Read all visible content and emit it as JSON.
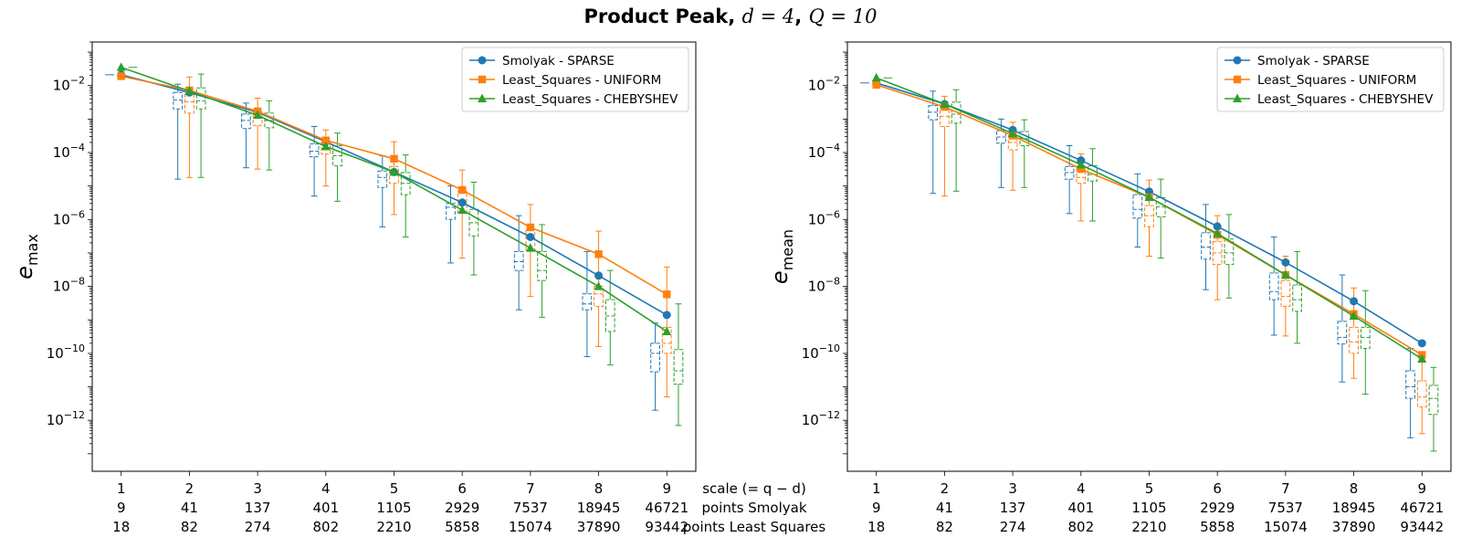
{
  "title": {
    "prefix": "Product Peak, ",
    "d_part": "d = 4",
    "separator": ", ",
    "q_part": "Q = 10"
  },
  "row_labels": [
    "scale (= q − d)",
    "points Smolyak",
    "points Least Squares"
  ],
  "colors": {
    "smolyak": "#1f77b4",
    "uniform": "#ff7f0e",
    "chebyshev": "#2ca02c"
  },
  "chart_data": [
    {
      "type": "line",
      "ylabel_base": "e",
      "ylabel_sub": "max",
      "yscale": "log",
      "ylim": [
        3e-14,
        0.2
      ],
      "yticks": [
        -12,
        -10,
        -8,
        -6,
        -4,
        -2
      ],
      "legend_position": "top-right",
      "x": [
        1,
        2,
        3,
        4,
        5,
        6,
        7,
        8,
        9
      ],
      "points_smolyak": [
        9,
        41,
        137,
        401,
        1105,
        2929,
        7537,
        18945,
        46721
      ],
      "points_least_squares": [
        18,
        82,
        274,
        802,
        2210,
        5858,
        15074,
        37890,
        93442
      ],
      "series": [
        {
          "name": "Smolyak - SPARSE",
          "marker": "circle",
          "color_key": "smolyak",
          "values": [
            0.021,
            0.0062,
            0.0016,
            0.00021,
            2.6e-05,
            3.2e-06,
            3e-07,
            2.1e-08,
            1.4e-09
          ],
          "box": [
            [
              0.021,
              0.021,
              0.021,
              0.021,
              0.021
            ],
            [
              1.6e-05,
              0.002,
              0.0037,
              0.0062,
              0.011
            ],
            [
              3.5e-05,
              0.00052,
              0.00091,
              0.0014,
              0.003
            ],
            [
              5e-06,
              7.5e-05,
              0.00011,
              0.00018,
              0.0006
            ],
            [
              6e-07,
              9e-06,
              1.8e-05,
              2.8e-05,
              8e-05
            ],
            [
              5e-08,
              1e-06,
              2.3e-06,
              3e-06,
              1e-05
            ],
            [
              2e-09,
              3e-08,
              5.5e-08,
              1.1e-07,
              1.3e-06
            ],
            [
              8e-11,
              2e-09,
              3e-09,
              6e-09,
              1.1e-07
            ],
            [
              2e-12,
              2.8e-11,
              1e-10,
              2e-10,
              8e-10
            ]
          ],
          "dashed_box_index_start": 1
        },
        {
          "name": "Least_Squares - UNIFORM",
          "marker": "square",
          "color_key": "uniform",
          "values": [
            0.019,
            0.0072,
            0.0017,
            0.00023,
            6.5e-05,
            7.6e-06,
            5.8e-07,
            9.2e-08,
            5.8e-09
          ],
          "box": [
            [
              0.019,
              0.019,
              0.019,
              0.019,
              0.019
            ],
            [
              1.8e-05,
              0.0015,
              0.0033,
              0.0065,
              0.018
            ],
            [
              3.2e-05,
              0.00065,
              0.0011,
              0.0016,
              0.0042
            ],
            [
              1e-05,
              9e-05,
              0.00013,
              0.0002,
              0.00047
            ],
            [
              1.4e-06,
              1.2e-05,
              2.5e-05,
              3.8e-05,
              0.00021
            ],
            [
              7e-08,
              1.6e-06,
              3e-06,
              7e-06,
              3e-05
            ],
            [
              5e-09,
              1.2e-07,
              2.8e-07,
              5e-07,
              2.8e-06
            ],
            [
              1.6e-10,
              2.5e-09,
              6e-09,
              1e-08,
              4.5e-07
            ],
            [
              5e-12,
              1e-10,
              2e-10,
              6e-10,
              3.8e-08
            ]
          ],
          "dashed_box_index_start": 1
        },
        {
          "name": "Least_Squares - CHEBYSHEV",
          "marker": "triangle",
          "color_key": "chebyshev",
          "values": [
            0.035,
            0.0068,
            0.0013,
            0.00015,
            2.6e-05,
            1.9e-06,
            1.4e-07,
            1e-08,
            4.5e-10
          ],
          "box": [
            [
              0.035,
              0.035,
              0.035,
              0.035,
              0.035
            ],
            [
              1.8e-05,
              0.002,
              0.0035,
              0.0085,
              0.022
            ],
            [
              3e-05,
              0.00055,
              0.0009,
              0.0015,
              0.0035
            ],
            [
              3.5e-06,
              4e-05,
              8e-05,
              0.00016,
              0.00038
            ],
            [
              3e-07,
              5.5e-06,
              1.2e-05,
              2.5e-05,
              8.5e-05
            ],
            [
              2.2e-08,
              3.2e-07,
              8e-07,
              2e-06,
              1.3e-05
            ],
            [
              1.2e-09,
              1.5e-08,
              3e-08,
              1.1e-07,
              7e-07
            ],
            [
              4.5e-11,
              4.5e-10,
              1.3e-09,
              4e-09,
              3e-08
            ],
            [
              7e-13,
              1.2e-11,
              3e-11,
              1.3e-10,
              3e-09
            ]
          ],
          "dashed_box_index_start": 1
        }
      ]
    },
    {
      "type": "line",
      "ylabel_base": "e",
      "ylabel_sub": "mean",
      "yscale": "log",
      "ylim": [
        3e-14,
        0.2
      ],
      "yticks": [
        -12,
        -10,
        -8,
        -6,
        -4,
        -2
      ],
      "legend_position": "top-right",
      "x": [
        1,
        2,
        3,
        4,
        5,
        6,
        7,
        8,
        9
      ],
      "points_smolyak": [
        9,
        41,
        137,
        401,
        1105,
        2929,
        7537,
        18945,
        46721
      ],
      "points_least_squares": [
        18,
        82,
        274,
        802,
        2210,
        5858,
        15074,
        37890,
        93442
      ],
      "series": [
        {
          "name": "Smolyak - SPARSE",
          "marker": "circle",
          "color_key": "smolyak",
          "values": [
            0.012,
            0.0028,
            0.00047,
            5.8e-05,
            6.8e-06,
            6.2e-07,
            5.2e-08,
            3.6e-09,
            2e-10
          ],
          "box": [
            [
              0.012,
              0.012,
              0.012,
              0.012,
              0.012
            ],
            [
              6e-06,
              0.00095,
              0.0016,
              0.0025,
              0.0068
            ],
            [
              9e-06,
              0.00019,
              0.00029,
              0.00045,
              0.001
            ],
            [
              1.5e-06,
              1.6e-05,
              2.5e-05,
              3.8e-05,
              0.00016
            ],
            [
              1.5e-07,
              1.1e-06,
              2e-06,
              5.5e-06,
              2.3e-05
            ],
            [
              8e-09,
              6.5e-08,
              1.5e-07,
              4e-07,
              2.8e-06
            ],
            [
              3.5e-10,
              4e-09,
              7e-09,
              2.5e-08,
              3e-07
            ],
            [
              1.4e-11,
              1.9e-10,
              3e-10,
              9e-10,
              2.2e-08
            ],
            [
              3e-13,
              4.5e-12,
              1e-11,
              3e-11,
              1.4e-10
            ]
          ],
          "dashed_box_index_start": 1
        },
        {
          "name": "Least_Squares - UNIFORM",
          "marker": "square",
          "color_key": "uniform",
          "values": [
            0.0105,
            0.0023,
            0.00032,
            3.2e-05,
            4.6e-06,
            3.5e-07,
            2.2e-08,
            1.5e-09,
            9e-11
          ],
          "box": [
            [
              0.0105,
              0.0105,
              0.0105,
              0.0105,
              0.0105
            ],
            [
              5e-06,
              0.0006,
              0.0012,
              0.0022,
              0.0048
            ],
            [
              7.5e-06,
              0.00012,
              0.0002,
              0.00032,
              0.0008
            ],
            [
              9e-07,
              1.2e-05,
              1.8e-05,
              3.2e-05,
              9e-05
            ],
            [
              8e-08,
              6e-07,
              1.3e-06,
              2.6e-06,
              1.5e-05
            ],
            [
              4e-09,
              4.5e-08,
              1e-07,
              2.2e-07,
              1.3e-06
            ],
            [
              3.3e-10,
              2.5e-09,
              5e-09,
              1.5e-08,
              8e-08
            ],
            [
              1.8e-11,
              1e-10,
              2.2e-10,
              6e-10,
              9e-09
            ],
            [
              4e-13,
              2.5e-12,
              5e-12,
              1.5e-11,
              6e-11
            ]
          ],
          "dashed_box_index_start": 1
        },
        {
          "name": "Least_Squares - CHEBYSHEV",
          "marker": "triangle",
          "color_key": "chebyshev",
          "values": [
            0.017,
            0.0028,
            0.00037,
            4.3e-05,
            4.6e-06,
            3.8e-07,
            2.2e-08,
            1.3e-09,
            6.8e-11
          ],
          "box": [
            [
              0.017,
              0.017,
              0.017,
              0.017,
              0.017
            ],
            [
              7e-06,
              0.00075,
              0.0014,
              0.0032,
              0.0075
            ],
            [
              9e-06,
              0.00016,
              0.00026,
              0.00042,
              0.00095
            ],
            [
              9e-07,
              1.4e-05,
              2.2e-05,
              4e-05,
              0.00013
            ],
            [
              7e-08,
              1.2e-06,
              2.4e-06,
              4.5e-06,
              1.6e-05
            ],
            [
              4.5e-09,
              4.5e-08,
              1e-07,
              2.6e-07,
              1.4e-06
            ],
            [
              2e-10,
              1.8e-09,
              4e-09,
              1.1e-08,
              1.1e-07
            ],
            [
              6e-12,
              1.4e-10,
              3e-10,
              6e-10,
              7.5e-09
            ],
            [
              1.2e-13,
              1.5e-12,
              4.5e-12,
              1.1e-11,
              3.8e-11
            ]
          ],
          "dashed_box_index_start": 1
        }
      ]
    }
  ]
}
